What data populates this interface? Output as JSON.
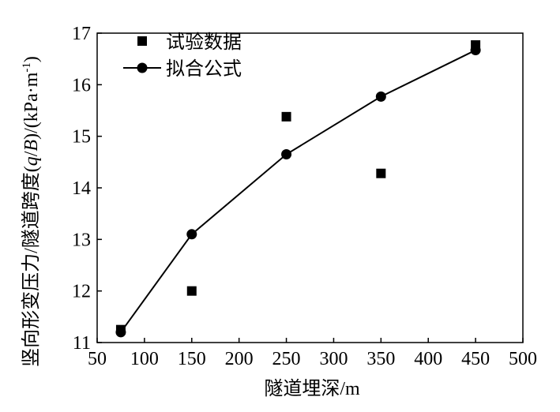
{
  "chart_data": {
    "type": "scatter",
    "xlabel": "隧道埋深/m",
    "ylabel_main": "竖向形变压力/隧道跨度",
    "ylabel_qb_open": "(",
    "ylabel_q": "q",
    "ylabel_slash": "/",
    "ylabel_b": "B",
    "ylabel_qb_close": ")/(kPa·m",
    "ylabel_exp": "-1",
    "ylabel_end": ")",
    "xlim": [
      50,
      500
    ],
    "ylim": [
      11,
      17
    ],
    "xticks": [
      "50",
      "100",
      "150",
      "200",
      "250",
      "300",
      "350",
      "400",
      "450",
      "500"
    ],
    "yticks": [
      "11",
      "12",
      "13",
      "14",
      "15",
      "16",
      "17"
    ],
    "grid": false,
    "legend_position": "top-left",
    "series": [
      {
        "name": "试验数据",
        "marker": "square",
        "line": false,
        "x": [
          75,
          150,
          250,
          350,
          450
        ],
        "y": [
          11.25,
          12.0,
          15.38,
          14.28,
          16.77
        ]
      },
      {
        "name": "拟合公式",
        "marker": "circle",
        "line": true,
        "x": [
          75,
          150,
          250,
          350,
          450
        ],
        "y": [
          11.2,
          13.1,
          14.65,
          15.77,
          16.67
        ]
      }
    ]
  }
}
